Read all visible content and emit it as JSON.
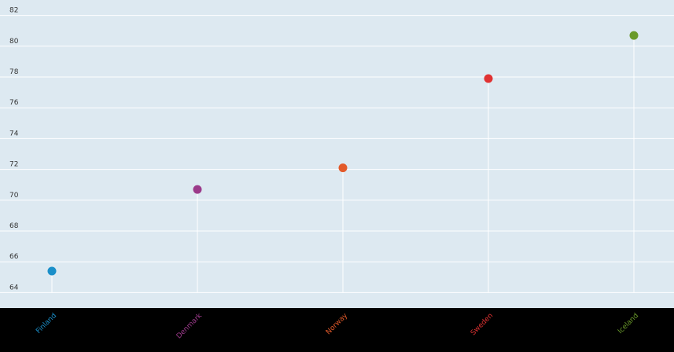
{
  "chart_data": {
    "type": "lollipop",
    "categories": [
      "Finland",
      "Denmark",
      "Norway",
      "Sweden",
      "Iceland"
    ],
    "values": [
      65.4,
      70.7,
      72.1,
      77.9,
      80.7
    ],
    "colors": [
      "#1a8fc9",
      "#9b3a8a",
      "#e35a2a",
      "#e03232",
      "#6a9a2a"
    ],
    "ylim": [
      63,
      83
    ],
    "yticks": [
      64,
      66,
      68,
      70,
      72,
      74,
      76,
      78,
      80,
      82
    ],
    "grid": true
  }
}
